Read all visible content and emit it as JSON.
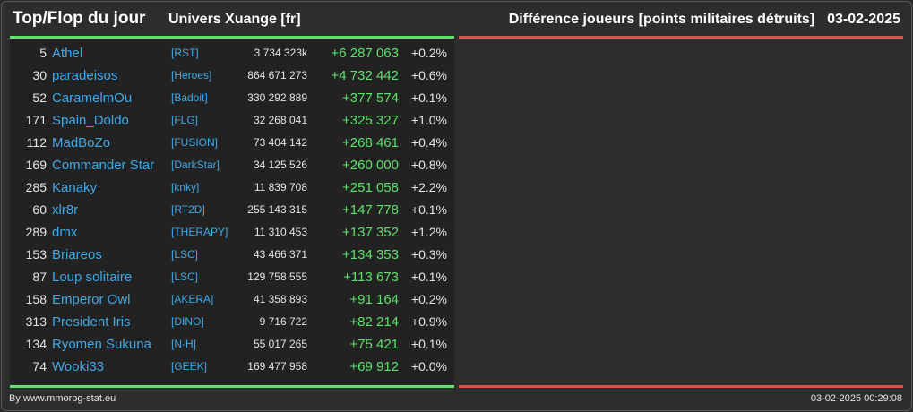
{
  "header": {
    "title": "Top/Flop du jour",
    "universe": "Univers Xuange [fr]",
    "metric": "Différence joueurs [points militaires détruits]",
    "date": "03-02-2025"
  },
  "colors": {
    "positive": "#5ee16b",
    "negative": "#e0534c",
    "link": "#3fa9e8",
    "background": "#2d2d2d"
  },
  "rows": [
    {
      "rank": "5",
      "name": "Athel",
      "alliance": "[RST]",
      "points": "3 734 323k",
      "diff": "+6 287 063",
      "pct": "+0.2%"
    },
    {
      "rank": "30",
      "name": "paradeisos",
      "alliance": "[Heroes]",
      "points": "864 671 273",
      "diff": "+4 732 442",
      "pct": "+0.6%"
    },
    {
      "rank": "52",
      "name": "CaramelmOu",
      "alliance": "[Badoit]",
      "points": "330 292 889",
      "diff": "+377 574",
      "pct": "+0.1%"
    },
    {
      "rank": "171",
      "name": "Spain_Doldo",
      "alliance": "[FLG]",
      "points": "32 268 041",
      "diff": "+325 327",
      "pct": "+1.0%"
    },
    {
      "rank": "112",
      "name": "MadBoZo",
      "alliance": "[FUSION]",
      "points": "73 404 142",
      "diff": "+268 461",
      "pct": "+0.4%"
    },
    {
      "rank": "169",
      "name": "Commander Star",
      "alliance": "[DarkStar]",
      "points": "34 125 526",
      "diff": "+260 000",
      "pct": "+0.8%"
    },
    {
      "rank": "285",
      "name": "Kanaky",
      "alliance": "[knky]",
      "points": "11 839 708",
      "diff": "+251 058",
      "pct": "+2.2%"
    },
    {
      "rank": "60",
      "name": "xlr8r",
      "alliance": "[RT2D]",
      "points": "255 143 315",
      "diff": "+147 778",
      "pct": "+0.1%"
    },
    {
      "rank": "289",
      "name": "dmx",
      "alliance": "[THERAPY]",
      "points": "11 310 453",
      "diff": "+137 352",
      "pct": "+1.2%"
    },
    {
      "rank": "153",
      "name": "Briareos",
      "alliance": "[LSC]",
      "points": "43 466 371",
      "diff": "+134 353",
      "pct": "+0.3%"
    },
    {
      "rank": "87",
      "name": "Loup solitaire",
      "alliance": "[LSC]",
      "points": "129 758 555",
      "diff": "+113 673",
      "pct": "+0.1%"
    },
    {
      "rank": "158",
      "name": "Emperor Owl",
      "alliance": "[AKERA]",
      "points": "41 358 893",
      "diff": "+91 164",
      "pct": "+0.2%"
    },
    {
      "rank": "313",
      "name": "President Iris",
      "alliance": "[DINO]",
      "points": "9 716 722",
      "diff": "+82 214",
      "pct": "+0.9%"
    },
    {
      "rank": "134",
      "name": "Ryomen Sukuna",
      "alliance": "[N-H]",
      "points": "55 017 265",
      "diff": "+75 421",
      "pct": "+0.1%"
    },
    {
      "rank": "74",
      "name": "Wooki33",
      "alliance": "[GEEK]",
      "points": "169 477 958",
      "diff": "+69 912",
      "pct": "+0.0%"
    }
  ],
  "footer": {
    "credit": "By www.mmorpg-stat.eu",
    "timestamp": "03-02-2025 00:29:08"
  }
}
